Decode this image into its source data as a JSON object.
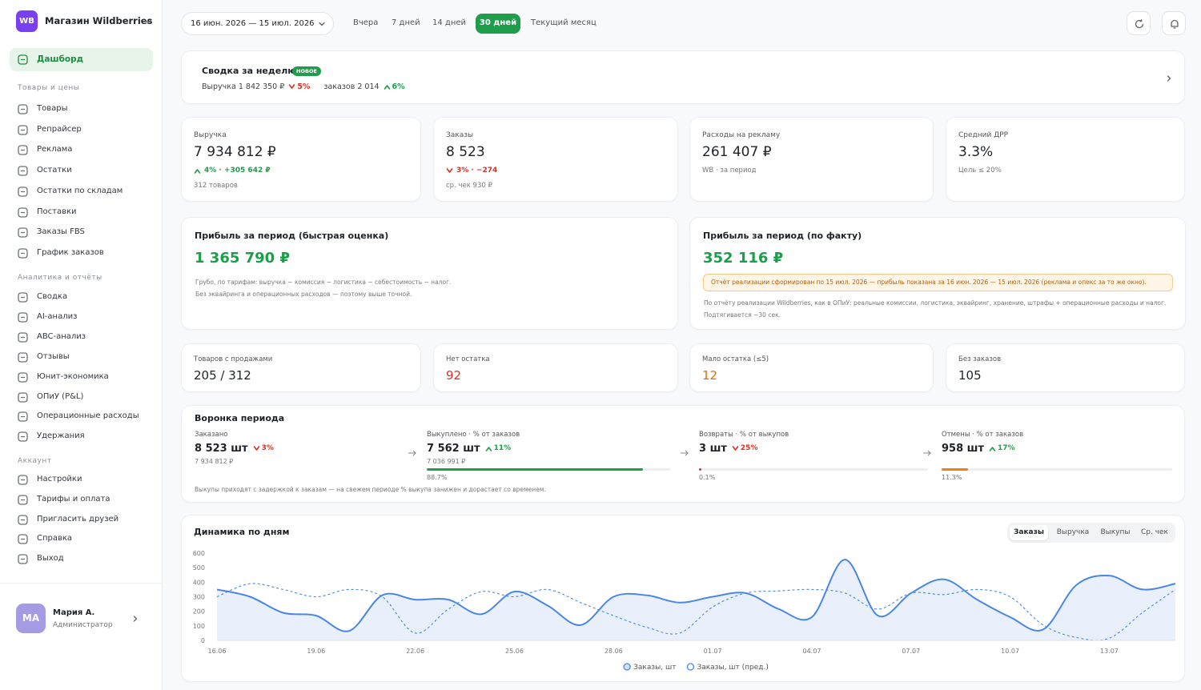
{
  "sidebar": {
    "logo": "WB",
    "shop": "Магазин Wildberries",
    "active": "Дашборд",
    "groups": [
      {
        "title": "Товары и цены",
        "items": [
          "Товары",
          "Репрайсер",
          "Реклама",
          "Остатки",
          "Остатки по складам",
          "Поставки",
          "Заказы FBS",
          "График заказов"
        ]
      },
      {
        "title": "Аналитика и отчёты",
        "items": [
          "Сводка",
          "AI-анализ",
          "ABC-анализ",
          "Отзывы",
          "Юнит-экономика",
          "ОПиУ (P&L)",
          "Операционные расходы",
          "Удержания"
        ]
      },
      {
        "title": "Аккаунт",
        "items": [
          "Настройки",
          "Тарифы и оплата",
          "Пригласить друзей",
          "Справка",
          "Выход"
        ]
      }
    ],
    "user": {
      "initials": "МА",
      "name": "Мария А.",
      "role": "Администратор"
    }
  },
  "topbar": {
    "date_range": "16 июн. 2026 — 15 июл. 2026",
    "periods": [
      "Вчера",
      "7 дней",
      "14 дней",
      "30 дней",
      "Текущий месяц"
    ],
    "active_period": 3
  },
  "summary": {
    "title": "Сводка за неделю",
    "badge": "НОВОЕ",
    "items": [
      {
        "text": "Выручка 1 842 350 ₽",
        "delta": "5%",
        "dir": "down"
      },
      {
        "text": "заказов 2 014",
        "delta": "6%",
        "dir": "up"
      }
    ]
  },
  "kpis": [
    {
      "label": "Выручка",
      "value": "7 934 812 ₽",
      "delta": "4% · +305 642 ₽",
      "dir": "up",
      "sub": "312 товаров"
    },
    {
      "label": "Заказы",
      "value": "8 523",
      "delta": "3% · −274",
      "dir": "down",
      "sub": "ср. чек 930 ₽"
    },
    {
      "label": "Расходы на рекламу",
      "value": "261 407 ₽",
      "sub": "WB · за период"
    },
    {
      "label": "Средний ДРР",
      "value": "3.3%",
      "sub": "Цель ≤ 20%"
    }
  ],
  "profit": [
    {
      "title": "Прибыль за период (быстрая оценка)",
      "value": "1 365 790 ₽",
      "notes": [
        "Грубо, по тарифам: выручка − комиссия − логистика − себестоимость − налог.",
        "Без эквайринга и операционных расходов — поэтому выше точной."
      ]
    },
    {
      "title": "Прибыль за период (по факту)",
      "value": "352 116 ₽",
      "alert": "Отчёт реализации сформирован по 15 июл. 2026 — прибыль показана за 16 июн. 2026 — 15 июл. 2026 (реклама и опекс за то же окно).",
      "notes": [
        "По отчёту реализации Wildberries, как в ОПиУ: реальные комиссии, логистика, эквайринг, хранение, штрафы + операционные расходы и налог.",
        "Подтягивается ~30 сек."
      ]
    }
  ],
  "stats": [
    {
      "label": "Товаров с продажами",
      "value": "205 / 312",
      "color": "#1f2328"
    },
    {
      "label": "Нет остатка",
      "value": "92",
      "color": "#d93025"
    },
    {
      "label": "Мало остатка (≤5)",
      "value": "12",
      "color": "#d9720b"
    },
    {
      "label": "Без заказов",
      "value": "105",
      "color": "#1f2328"
    }
  ],
  "funnel": {
    "title": "Воронка периода",
    "steps": [
      {
        "label": "Заказано",
        "value": "8 523 шт",
        "delta": "3%",
        "dir": "down",
        "sub": "7 934 812 ₽"
      },
      {
        "label": "Выкуплено · % от заказов",
        "value": "7 562 шт",
        "delta": "11%",
        "dir": "up",
        "sub": "7 036 991 ₽",
        "progress": 88.7,
        "progress_label": "88.7%",
        "color": "#1e9e4a"
      },
      {
        "label": "Возвраты · % от выкупов",
        "value": "3 шт",
        "delta": "25%",
        "dir": "down",
        "progress": 0.1,
        "progress_label": "0.1%",
        "color": "#d93025"
      },
      {
        "label": "Отмены · % от заказов",
        "value": "958 шт",
        "delta": "17%",
        "dir": "up",
        "progress": 11.3,
        "progress_label": "11.3%",
        "color": "#f07f16"
      }
    ],
    "note": "Выкупы приходят с задержкой к заказам — на свежем периоде % выкупа занижен и дорастает со временем."
  },
  "dynamics": {
    "tabs": [
      "Заказы",
      "Выручка",
      "Выкупы",
      "Ср. чек"
    ],
    "active_tab": 0
  },
  "chart_data": {
    "type": "line",
    "title": "Динамика по дням",
    "categories": [
      "16.06",
      null,
      null,
      "19.06",
      null,
      null,
      "22.06",
      null,
      null,
      "25.06",
      null,
      null,
      "28.06",
      null,
      null,
      "01.07",
      null,
      null,
      "04.07",
      null,
      null,
      "07.07",
      null,
      null,
      "10.07",
      null,
      null,
      "13.07",
      null,
      null
    ],
    "series": [
      {
        "name": "Заказы, шт",
        "color": "#4a86e8",
        "area": true,
        "dashed": false,
        "values": [
          350,
          300,
          190,
          170,
          65,
          310,
          280,
          280,
          180,
          335,
          240,
          105,
          300,
          310,
          260,
          300,
          325,
          215,
          160,
          555,
          170,
          325,
          420,
          280,
          160,
          75,
          380,
          445,
          350,
          390
        ]
      },
      {
        "name": "Заказы, шт (пред.)",
        "color": "#4a86e8",
        "area": false,
        "dashed": true,
        "values": [
          300,
          390,
          350,
          300,
          350,
          300,
          50,
          215,
          335,
          300,
          350,
          260,
          170,
          90,
          50,
          230,
          325,
          340,
          350,
          325,
          215,
          325,
          315,
          350,
          300,
          105,
          20,
          15,
          190,
          350
        ]
      }
    ],
    "ylim": [
      0,
      600
    ],
    "yticks": [
      0,
      100,
      200,
      300,
      400,
      500,
      600
    ],
    "grid": false
  }
}
